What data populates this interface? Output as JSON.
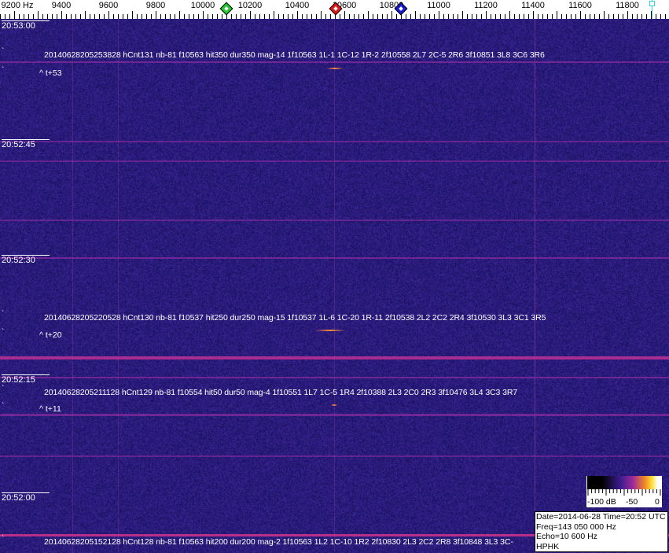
{
  "frequency_axis": {
    "unit_label": "9200 Hz",
    "labels": [
      "9400",
      "9600",
      "9800",
      "10000",
      "10200",
      "10400",
      "10600",
      "10800",
      "11000",
      "11200",
      "11400",
      "11600",
      "11800"
    ],
    "markers": [
      {
        "name": "green-marker",
        "color": "#22c832",
        "freq_hz": 10100
      },
      {
        "name": "red-marker",
        "color": "#e01818",
        "freq_hz": 10563
      },
      {
        "name": "blue-marker",
        "color": "#1818d0",
        "freq_hz": 10840
      },
      {
        "name": "cyan-marker",
        "color": "#2cd6e0",
        "freq_hz": 11903
      }
    ]
  },
  "time_labels": [
    "20:53:00",
    "20:52:45",
    "20:52:30",
    "20:52:15",
    "20:52:00"
  ],
  "events": [
    {
      "text": "20140628205253828 hCnt131 nb-81 f10563 hit350 dur350 mag-14 1f10563 1L-1 1C-12 1R-2 2f10558 2L7 2C-5 2R6 3f10851 3L8 3C6 3R6",
      "offset": "^ t+53"
    },
    {
      "text": "20140628205220528 hCnt130 nb-81 f10537 hit250 dur250 mag-15 1f10537 1L-6 1C-20 1R-11 2f10538 2L2 2C2 2R4 3f10530 3L3 3C1 3R5",
      "offset": "^ t+20"
    },
    {
      "text": "20140628205211128 hCnt129 nb-81 f10554 hit50 dur50 mag-4 1f10551 1L7 1C-5 1R4 2f10388 2L3 2C0 2R3 3f10476 3L4 3C3 3R7",
      "offset": "^ t+11"
    },
    {
      "text": "20140628205152128 hCnt128 nb-81 f10563 hit200 dur200 mag-2 1f10563 1L2 1C-10 1R2 2f10830 2L3 2C2 2R8 3f10848 3L3 3C-"
    }
  ],
  "event_tick": "`",
  "color_scale": {
    "labels": [
      "-100 dB",
      "-50",
      "0"
    ]
  },
  "info": {
    "date_time": "Date=2014-06-28 Time=20:52 UTC",
    "freq": "Freq=143 050 000 Hz",
    "echo": "Echo=10 600 Hz",
    "station": "HPHK"
  }
}
